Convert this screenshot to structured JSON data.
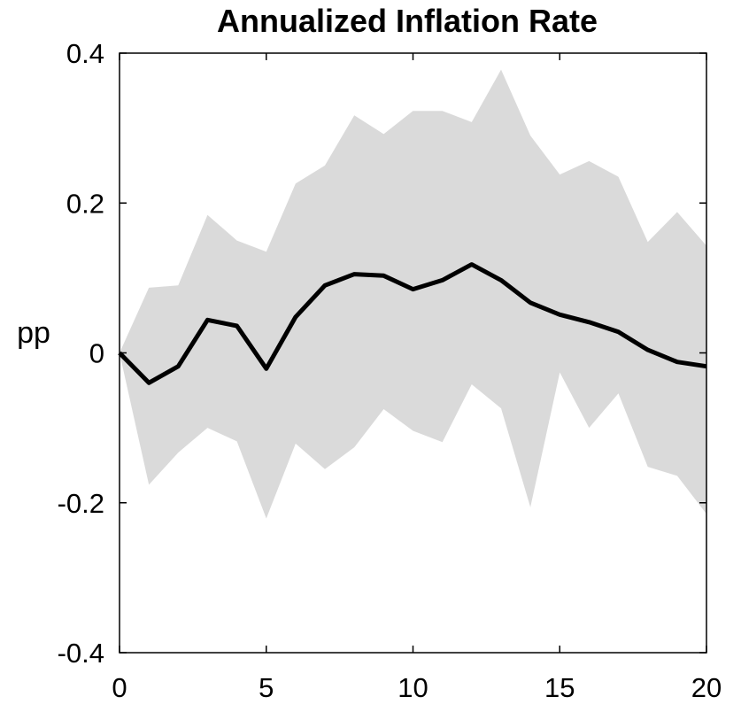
{
  "chart_data": {
    "type": "line",
    "title": "Annualized Inflation Rate",
    "ylabel": "pp",
    "xlabel": "",
    "xlim": [
      0,
      20
    ],
    "ylim": [
      -0.4,
      0.4
    ],
    "x_ticks": [
      0,
      5,
      10,
      15,
      20
    ],
    "x_tick_labels": [
      "0",
      "5",
      "10",
      "15",
      "20"
    ],
    "y_ticks": [
      0.4,
      0.2,
      0,
      -0.2,
      -0.4
    ],
    "y_tick_labels": [
      "0.4",
      "0.2",
      "0",
      "-0.2",
      "-0.4"
    ],
    "grid": false,
    "legend": "none",
    "x": [
      0,
      1,
      2,
      3,
      4,
      5,
      6,
      7,
      8,
      9,
      10,
      11,
      12,
      13,
      14,
      15,
      16,
      17,
      18,
      19,
      20
    ],
    "series": [
      {
        "role": "median",
        "values": [
          0,
          -0.04,
          -0.018,
          0.044,
          0.036,
          -0.021,
          0.048,
          0.09,
          0.105,
          0.103,
          0.085,
          0.097,
          0.118,
          0.097,
          0.067,
          0.051,
          0.041,
          0.028,
          0.004,
          -0.012,
          -0.018
        ],
        "color": "#000000"
      }
    ],
    "band": {
      "upper": [
        0,
        0.087,
        0.09,
        0.184,
        0.15,
        0.135,
        0.226,
        0.25,
        0.317,
        0.292,
        0.323,
        0.323,
        0.308,
        0.378,
        0.29,
        0.238,
        0.256,
        0.235,
        0.148,
        0.188,
        0.143
      ],
      "lower": [
        0,
        -0.176,
        -0.133,
        -0.1,
        -0.118,
        -0.221,
        -0.121,
        -0.155,
        -0.126,
        -0.075,
        -0.104,
        -0.119,
        -0.042,
        -0.074,
        -0.206,
        -0.026,
        -0.1,
        -0.054,
        -0.152,
        -0.164,
        -0.215
      ],
      "color": "#dadada"
    }
  }
}
